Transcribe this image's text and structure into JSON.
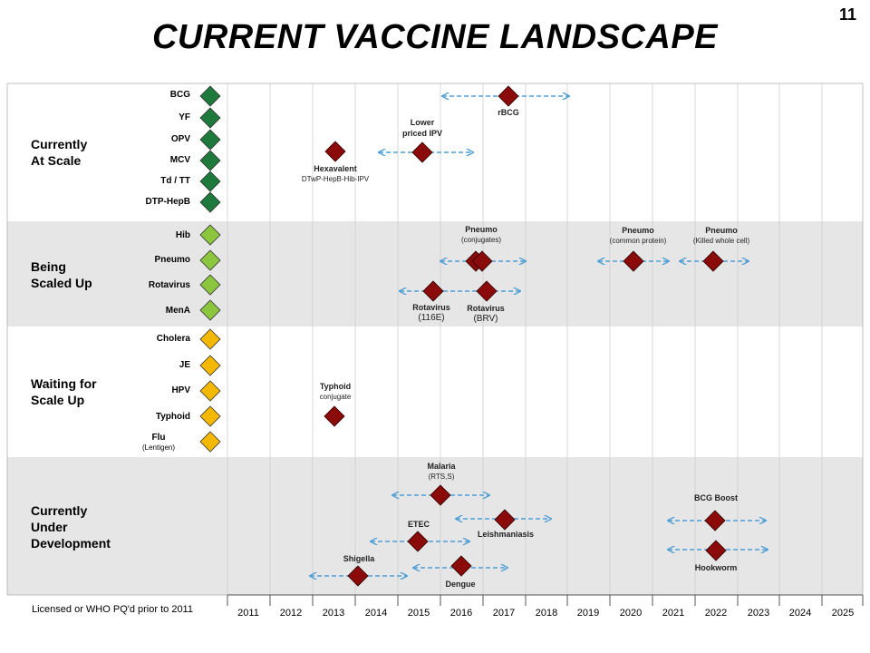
{
  "page_number": "11",
  "title": "CURRENT VACCINE LANDSCAPE",
  "colors": {
    "dark_green": "#1e7a3c",
    "light_green": "#8cc63f",
    "yellow": "#f5b800",
    "dark_red": "#8b0a0a",
    "arrow_blue": "#4f9fd5",
    "band_gray": "#e6e6e6"
  },
  "bands": [
    {
      "title_line1": "Currently",
      "title_line2": "At Scale",
      "title_line3": "",
      "items": [
        {
          "label": "BCG",
          "sub": ""
        },
        {
          "label": "YF",
          "sub": ""
        },
        {
          "label": "OPV",
          "sub": ""
        },
        {
          "label": "MCV",
          "sub": ""
        },
        {
          "label": "Td / TT",
          "sub": ""
        },
        {
          "label": "DTP-HepB",
          "sub": ""
        }
      ]
    },
    {
      "title_line1": "Being",
      "title_line2": "Scaled Up",
      "title_line3": "",
      "items": [
        {
          "label": "Hib",
          "sub": ""
        },
        {
          "label": "Pneumo",
          "sub": ""
        },
        {
          "label": "Rotavirus",
          "sub": ""
        },
        {
          "label": "MenA",
          "sub": ""
        }
      ]
    },
    {
      "title_line1": "Waiting for",
      "title_line2": "Scale Up",
      "title_line3": "",
      "items": [
        {
          "label": "Cholera",
          "sub": ""
        },
        {
          "label": "JE",
          "sub": ""
        },
        {
          "label": "HPV",
          "sub": ""
        },
        {
          "label": "Typhoid",
          "sub": ""
        },
        {
          "label": "Flu",
          "sub": "(Lentigen)"
        }
      ]
    },
    {
      "title_line1": "Currently",
      "title_line2": "Under",
      "title_line3": "Development",
      "items": []
    }
  ],
  "footer_note": "Licensed or WHO PQ'd prior to 2011",
  "years": [
    "2011",
    "2012",
    "2013",
    "2014",
    "2015",
    "2016",
    "2017",
    "2018",
    "2019",
    "2020",
    "2021",
    "2022",
    "2023",
    "2024",
    "2025"
  ],
  "pipeline": {
    "rbcg": {
      "label": "rBCG",
      "sub": ""
    },
    "lower_ipv": {
      "label": "Lower",
      "sub": "priced IPV"
    },
    "hexavalent": {
      "label": "Hexavalent",
      "sub": "DTwP-HepB-Hib-IPV"
    },
    "pneumo_conj": {
      "label": "Pneumo",
      "sub": "(conjugates)"
    },
    "pneumo_common": {
      "label": "Pneumo",
      "sub": "(common protein)"
    },
    "pneumo_killed": {
      "label": "Pneumo",
      "sub": "(Killed whole cell)"
    },
    "rota_116e": {
      "label": "Rotavirus",
      "sub": "(116E)"
    },
    "rota_brv": {
      "label": "Rotavirus",
      "sub": "(BRV)"
    },
    "typhoid_conj": {
      "label": "Typhoid",
      "sub": "conjugate"
    },
    "malaria": {
      "label": "Malaria",
      "sub": "(RTS,S)"
    },
    "etec": {
      "label": "ETEC",
      "sub": ""
    },
    "leish": {
      "label": "Leishmaniasis",
      "sub": ""
    },
    "shigella": {
      "label": "Shigella",
      "sub": ""
    },
    "dengue": {
      "label": "Dengue",
      "sub": ""
    },
    "bcg_boost": {
      "label": "BCG Boost",
      "sub": ""
    },
    "hookworm": {
      "label": "Hookworm",
      "sub": ""
    }
  }
}
